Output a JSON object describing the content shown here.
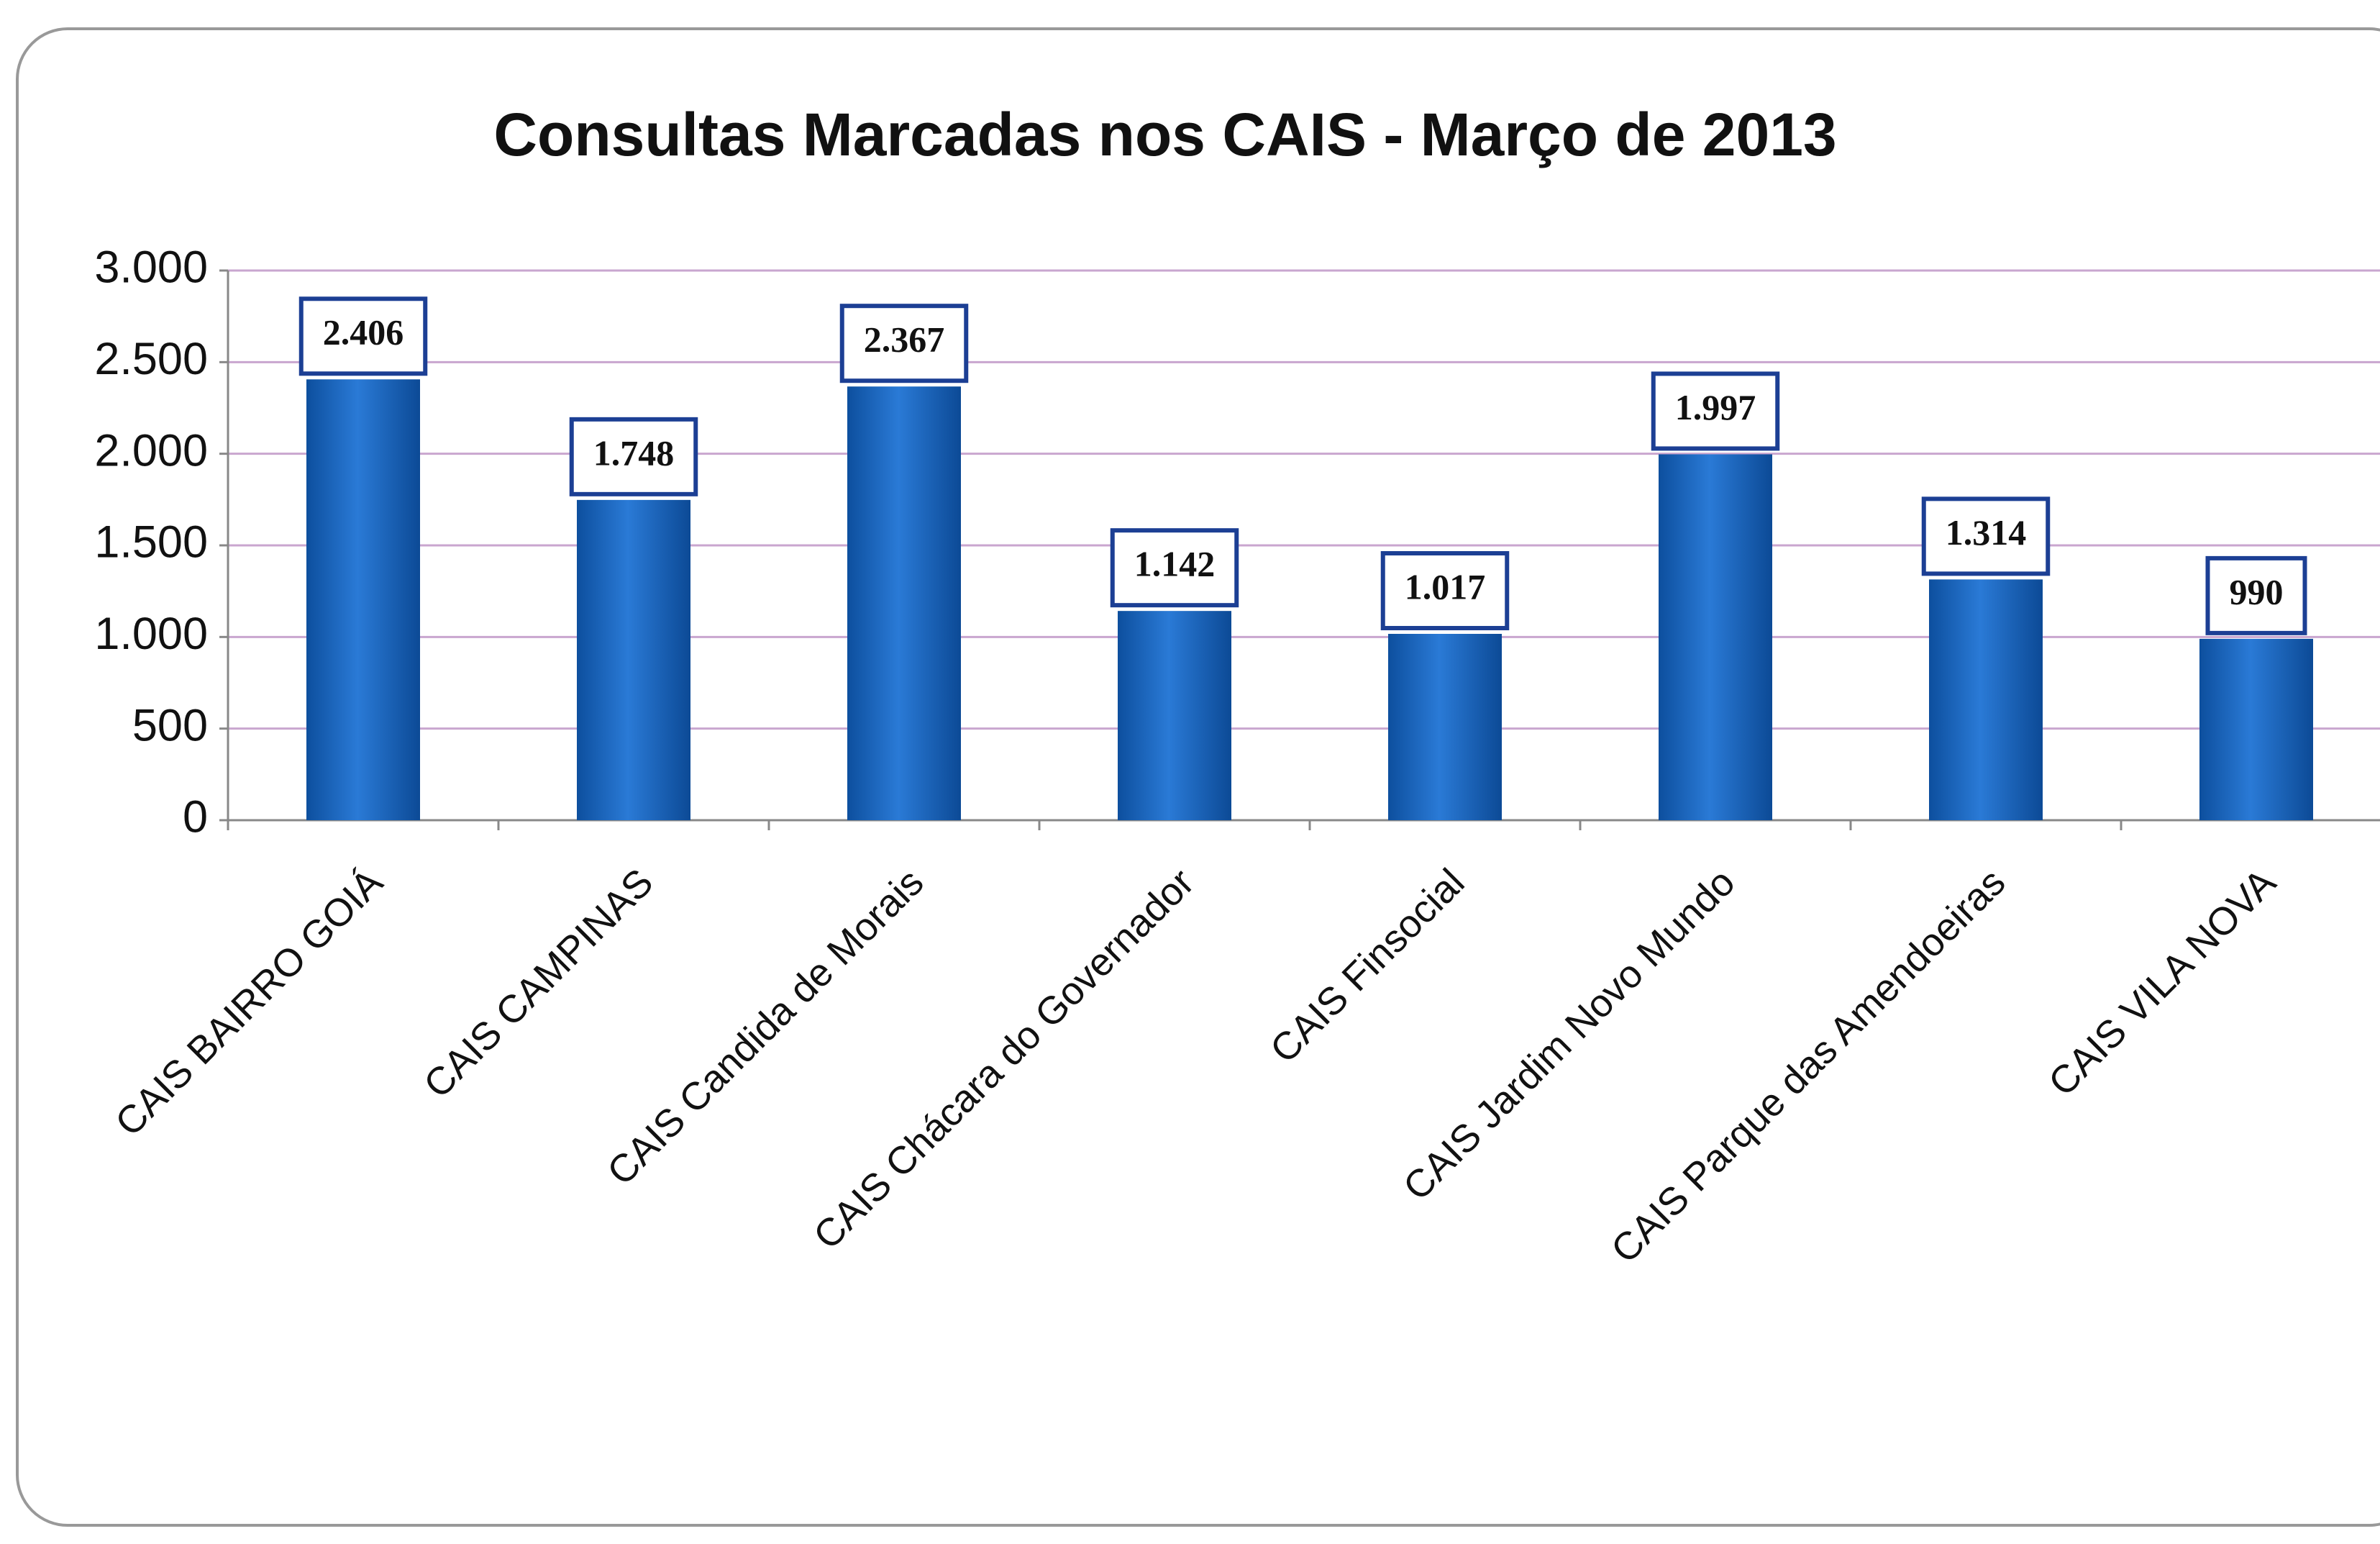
{
  "chart_data": {
    "type": "bar",
    "title": "Consultas Marcadas nos CAIS - Março de 2013",
    "categories": [
      "CAIS BAIRRO GOIÁ",
      "CAIS CAMPINAS",
      "CAIS Candida de Morais",
      "CAIS Chácara do Governador",
      "CAIS Finsocial",
      "CAIS Jardim Novo Mundo",
      "CAIS Parque das Amendoeiras",
      "CAIS VILA NOVA"
    ],
    "values": [
      2406,
      1748,
      2367,
      1142,
      1017,
      1997,
      1314,
      990
    ],
    "value_labels": [
      "2.406",
      "1.748",
      "2.367",
      "1.142",
      "1.017",
      "1.997",
      "1.314",
      "990"
    ],
    "color": "#1a66c0",
    "ylim": [
      0,
      3000
    ],
    "yticks": [
      0,
      500,
      {
        "value": 1000,
        "label": "1.000"
      },
      {
        "value": 1500,
        "label": "1.500"
      },
      {
        "value": 2000,
        "label": "2.000"
      },
      {
        "value": 2500,
        "label": "2.500"
      },
      {
        "value": 3000,
        "label": "3.000"
      }
    ],
    "grid": true
  }
}
